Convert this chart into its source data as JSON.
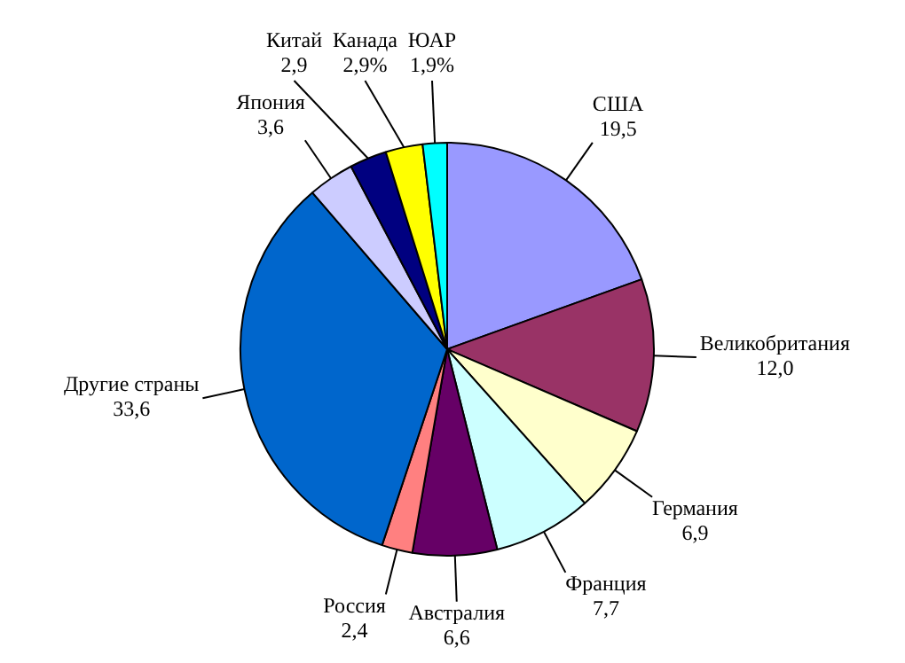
{
  "chart_data": {
    "type": "pie",
    "categories": [
      "США",
      "Великобритания",
      "Германия",
      "Франция",
      "Австралия",
      "Россия",
      "Другие страны",
      "Япония",
      "Китай",
      "Канада",
      "ЮАР"
    ],
    "values": [
      19.5,
      12.0,
      6.9,
      7.7,
      6.6,
      2.4,
      33.6,
      3.6,
      2.9,
      2.9,
      1.9
    ],
    "value_labels": [
      "19,5",
      "12,0",
      "6,9",
      "7,7",
      "6,6",
      "2,4",
      "33,6",
      "3,6",
      "2,9",
      "2,9%",
      "1,9%"
    ],
    "colors": [
      "#9999ff",
      "#993366",
      "#ffffcc",
      "#ccffff",
      "#660066",
      "#ff8080",
      "#0066cc",
      "#ccccff",
      "#000080",
      "#ffff00",
      "#00ffff"
    ],
    "legend": false
  }
}
